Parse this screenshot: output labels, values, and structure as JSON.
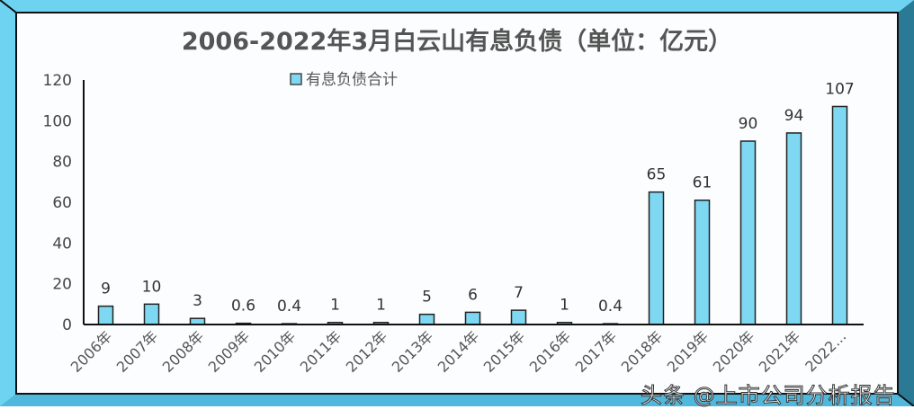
{
  "chart_data": {
    "type": "bar",
    "title": "2006-2022年3月白云山有息负债（单位：亿元）",
    "categories": [
      "2006年",
      "2007年",
      "2008年",
      "2009年",
      "2010年",
      "2011年",
      "2012年",
      "2013年",
      "2014年",
      "2015年",
      "2016年",
      "2017年",
      "2018年",
      "2019年",
      "2020年",
      "2021年",
      "2022..."
    ],
    "series": [
      {
        "name": "有息负债合计",
        "values": [
          9,
          10,
          3,
          0.6,
          0.4,
          1,
          1,
          5,
          6,
          7,
          1,
          0.4,
          65,
          61,
          90,
          94,
          107
        ],
        "color": "#7fd8f2"
      }
    ],
    "data_labels": [
      "9",
      "10",
      "3",
      "0.6",
      "0.4",
      "1",
      "1",
      "5",
      "6",
      "7",
      "1",
      "0.4",
      "65",
      "61",
      "90",
      "94",
      "107"
    ],
    "yticks": [
      0,
      20,
      40,
      60,
      80,
      100,
      120
    ],
    "ylim": [
      0,
      120
    ],
    "grid": false,
    "legend_position": "top"
  },
  "watermark": "头条 @上市公司分析报告",
  "colors": {
    "frame": "#6dd3f0",
    "frame_dark": "#2a7a95",
    "bar": "#7fd8f2"
  }
}
